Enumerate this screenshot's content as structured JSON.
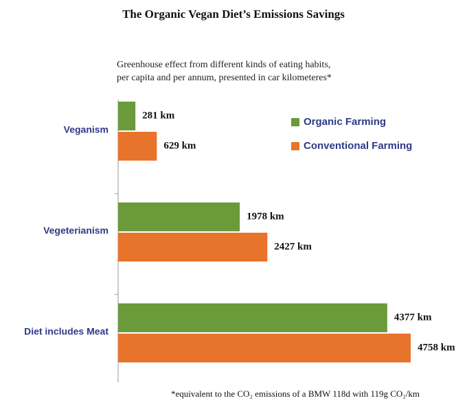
{
  "chart_data": {
    "type": "hbar",
    "title": "The Organic Vegan Diet’s Emissions Savings",
    "subtitle": [
      "Greenhouse effect from different kinds of eating habits,",
      "per capita and per annum, presented in car kilometeres*"
    ],
    "categories": [
      "Veganism",
      "Vegeterianism",
      "Diet includes Meat"
    ],
    "series": [
      {
        "name": "Organic Farming",
        "color": "#6b9a3b",
        "values": [
          281,
          1978,
          4377
        ],
        "value_labels": [
          "281 km",
          "1978 km",
          "4377 km"
        ]
      },
      {
        "name": "Conventional Farming",
        "color": "#e8732b",
        "values": [
          629,
          2427,
          4758
        ],
        "value_labels": [
          "629 km",
          "2427 km",
          "4758 km"
        ]
      }
    ],
    "footnote": "*equivalent to the CO₂ emissions of a BMW 118d with 119g CO₂/km"
  }
}
